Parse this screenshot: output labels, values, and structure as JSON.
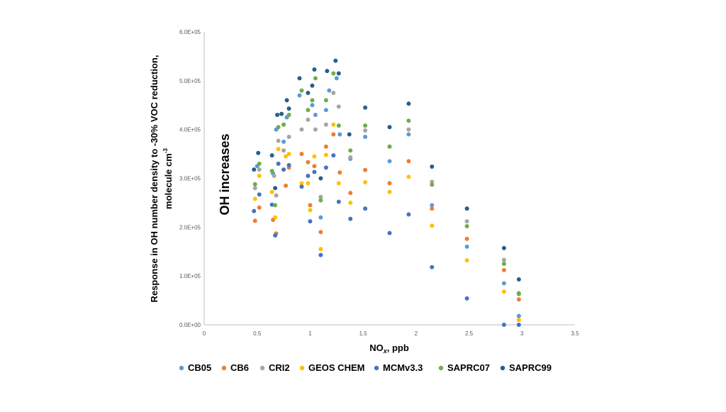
{
  "chart_data": {
    "type": "scatter",
    "xlabel_main": "NO",
    "xlabel_sub": "x",
    "xlabel_rest": ", ppb",
    "ylabel_line1": "Response in OH number density to -30% VOC reduction,",
    "ylabel_line2_main": "molecule cm",
    "ylabel_line2_sup": "-3",
    "annotation": "OH increases",
    "xlim": [
      0,
      3.5
    ],
    "ylim": [
      0,
      600000
    ],
    "x_ticks": [
      "0",
      "0.5",
      "1",
      "1.5",
      "2",
      "2.5",
      "3",
      "3.5"
    ],
    "y_ticks": [
      "0.0E+00",
      "1.0E+05",
      "2.0E+05",
      "3.0E+05",
      "4.0E+05",
      "5.0E+05",
      "6.0E+05"
    ],
    "grid": false,
    "legend_position": "bottom",
    "series": [
      {
        "name": "CB05",
        "color": "#5B9BD5",
        "points": [
          [
            0.5,
            325000
          ],
          [
            0.65,
            310000
          ],
          [
            0.68,
            400000
          ],
          [
            0.75,
            375000
          ],
          [
            0.78,
            425000
          ],
          [
            0.9,
            470000
          ],
          [
            1.02,
            450000
          ],
          [
            1.05,
            430000
          ],
          [
            1.1,
            220000
          ],
          [
            1.15,
            440000
          ],
          [
            1.18,
            480000
          ],
          [
            1.25,
            505000
          ],
          [
            1.28,
            390000
          ],
          [
            1.38,
            340000
          ],
          [
            1.52,
            385000
          ],
          [
            1.75,
            335000
          ],
          [
            1.93,
            390000
          ],
          [
            2.15,
            245000
          ],
          [
            2.48,
            160000
          ],
          [
            2.83,
            85000
          ],
          [
            2.97,
            18000
          ]
        ]
      },
      {
        "name": "CB6",
        "color": "#ED7D31",
        "points": [
          [
            0.48,
            213000
          ],
          [
            0.52,
            240000
          ],
          [
            0.65,
            215000
          ],
          [
            0.68,
            187000
          ],
          [
            0.77,
            285000
          ],
          [
            0.8,
            322000
          ],
          [
            0.92,
            350000
          ],
          [
            0.98,
            333000
          ],
          [
            1.0,
            245000
          ],
          [
            1.04,
            325000
          ],
          [
            1.1,
            190000
          ],
          [
            1.15,
            365000
          ],
          [
            1.22,
            390000
          ],
          [
            1.28,
            312000
          ],
          [
            1.38,
            270000
          ],
          [
            1.52,
            317000
          ],
          [
            1.75,
            290000
          ],
          [
            1.93,
            335000
          ],
          [
            2.15,
            238000
          ],
          [
            2.48,
            176000
          ],
          [
            2.83,
            112000
          ],
          [
            2.97,
            52000
          ]
        ]
      },
      {
        "name": "CRI2",
        "color": "#A5A5A5",
        "points": [
          [
            0.48,
            280000
          ],
          [
            0.52,
            318000
          ],
          [
            0.66,
            305000
          ],
          [
            0.68,
            265000
          ],
          [
            0.7,
            377000
          ],
          [
            0.75,
            357000
          ],
          [
            0.8,
            385000
          ],
          [
            0.92,
            400000
          ],
          [
            0.98,
            420000
          ],
          [
            1.05,
            400000
          ],
          [
            1.1,
            262000
          ],
          [
            1.15,
            410000
          ],
          [
            1.22,
            475000
          ],
          [
            1.27,
            447000
          ],
          [
            1.38,
            343000
          ],
          [
            1.52,
            398000
          ],
          [
            1.75,
            365000
          ],
          [
            1.93,
            400000
          ],
          [
            2.15,
            293000
          ],
          [
            2.48,
            212000
          ],
          [
            2.83,
            133000
          ],
          [
            2.97,
            65000
          ]
        ]
      },
      {
        "name": "GEOS CHEM",
        "color": "#FFC000",
        "points": [
          [
            0.48,
            258000
          ],
          [
            0.52,
            305000
          ],
          [
            0.64,
            272000
          ],
          [
            0.67,
            220000
          ],
          [
            0.7,
            360000
          ],
          [
            0.77,
            345000
          ],
          [
            0.8,
            350000
          ],
          [
            0.92,
            290000
          ],
          [
            0.98,
            290000
          ],
          [
            1.0,
            235000
          ],
          [
            1.04,
            345000
          ],
          [
            1.1,
            155000
          ],
          [
            1.15,
            348000
          ],
          [
            1.22,
            410000
          ],
          [
            1.27,
            290000
          ],
          [
            1.38,
            250000
          ],
          [
            1.52,
            292000
          ],
          [
            1.75,
            272000
          ],
          [
            1.93,
            303000
          ],
          [
            2.15,
            203000
          ],
          [
            2.48,
            132000
          ],
          [
            2.83,
            68000
          ],
          [
            2.97,
            10000
          ]
        ]
      },
      {
        "name": "MCMv3.3",
        "color": "#4472C4",
        "points": [
          [
            0.47,
            233000
          ],
          [
            0.52,
            267000
          ],
          [
            0.64,
            246000
          ],
          [
            0.67,
            183000
          ],
          [
            0.7,
            330000
          ],
          [
            0.75,
            318000
          ],
          [
            0.8,
            327000
          ],
          [
            0.92,
            283000
          ],
          [
            0.98,
            305000
          ],
          [
            1.0,
            212000
          ],
          [
            1.04,
            313000
          ],
          [
            1.1,
            143000
          ],
          [
            1.15,
            322000
          ],
          [
            1.22,
            347000
          ],
          [
            1.27,
            252000
          ],
          [
            1.38,
            217000
          ],
          [
            1.52,
            238000
          ],
          [
            1.75,
            188000
          ],
          [
            1.93,
            226000
          ],
          [
            2.15,
            118000
          ],
          [
            2.48,
            54000
          ],
          [
            2.83,
            0
          ],
          [
            2.97,
            0
          ]
        ]
      },
      {
        "name": "SAPRC07",
        "color": "#70AD47",
        "points": [
          [
            0.48,
            288000
          ],
          [
            0.52,
            330000
          ],
          [
            0.64,
            315000
          ],
          [
            0.67,
            245000
          ],
          [
            0.7,
            405000
          ],
          [
            0.75,
            410000
          ],
          [
            0.8,
            430000
          ],
          [
            0.92,
            480000
          ],
          [
            0.98,
            440000
          ],
          [
            1.02,
            460000
          ],
          [
            1.05,
            505000
          ],
          [
            1.1,
            255000
          ],
          [
            1.15,
            460000
          ],
          [
            1.22,
            515000
          ],
          [
            1.27,
            408000
          ],
          [
            1.38,
            357000
          ],
          [
            1.52,
            408000
          ],
          [
            1.75,
            365000
          ],
          [
            1.93,
            418000
          ],
          [
            2.15,
            287000
          ],
          [
            2.48,
            202000
          ],
          [
            2.83,
            125000
          ],
          [
            2.97,
            63000
          ]
        ]
      },
      {
        "name": "SAPRC99",
        "color": "#255E91",
        "points": [
          [
            0.47,
            318000
          ],
          [
            0.51,
            352000
          ],
          [
            0.64,
            347000
          ],
          [
            0.67,
            280000
          ],
          [
            0.69,
            430000
          ],
          [
            0.73,
            432000
          ],
          [
            0.78,
            460000
          ],
          [
            0.8,
            443000
          ],
          [
            0.9,
            505000
          ],
          [
            0.98,
            475000
          ],
          [
            1.02,
            490000
          ],
          [
            1.04,
            523000
          ],
          [
            1.1,
            300000
          ],
          [
            1.16,
            520000
          ],
          [
            1.24,
            541000
          ],
          [
            1.27,
            515000
          ],
          [
            1.37,
            390000
          ],
          [
            1.52,
            445000
          ],
          [
            1.75,
            405000
          ],
          [
            1.93,
            453000
          ],
          [
            2.15,
            324000
          ],
          [
            2.48,
            238000
          ],
          [
            2.83,
            157000
          ],
          [
            2.97,
            93000
          ]
        ]
      }
    ]
  }
}
